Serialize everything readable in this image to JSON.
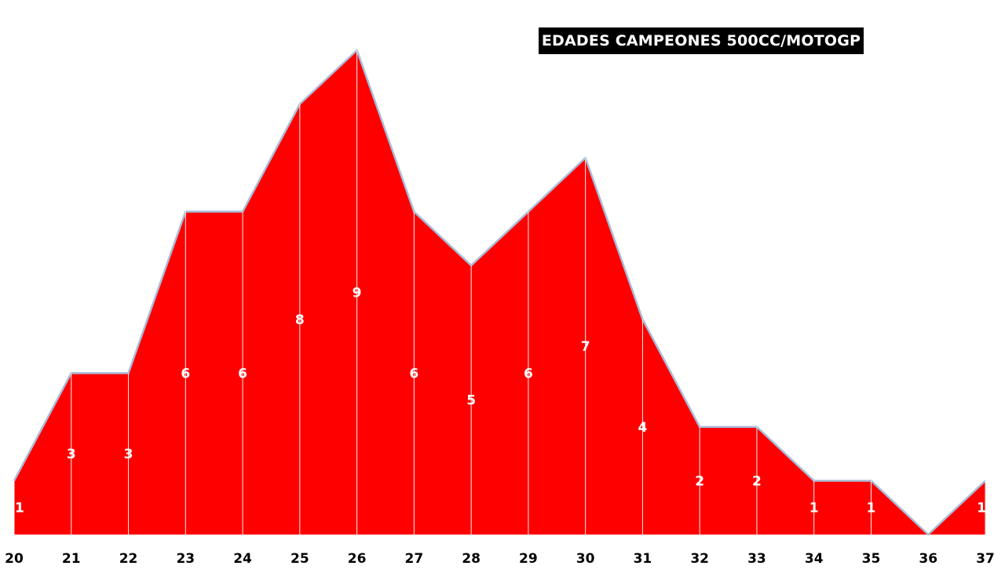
{
  "chart_data": {
    "type": "area",
    "title": "EDADES CAMPEONES 500CC/MOTOGP",
    "x": [
      20,
      21,
      22,
      23,
      24,
      25,
      26,
      27,
      28,
      29,
      30,
      31,
      32,
      33,
      34,
      35,
      36,
      37
    ],
    "values": [
      1,
      3,
      3,
      6,
      6,
      8,
      9,
      6,
      5,
      6,
      7,
      4,
      2,
      2,
      1,
      1,
      0,
      1
    ],
    "data_labels": [
      "1",
      "3",
      "3",
      "6",
      "6",
      "8",
      "9",
      "6",
      "5",
      "6",
      "7",
      "4",
      "2",
      "2",
      "1",
      "1",
      "",
      "1"
    ],
    "ylim": [
      0,
      9
    ],
    "xlabel": "",
    "ylabel": "",
    "grid": false,
    "show_y_axis": false,
    "colors": {
      "fill": "#ff0000",
      "outline": "#a8bcd8",
      "drop_lines": "#f2f2f2",
      "label_text": "#ffffff",
      "title_bg": "#000000",
      "title_text": "#ffffff"
    }
  }
}
